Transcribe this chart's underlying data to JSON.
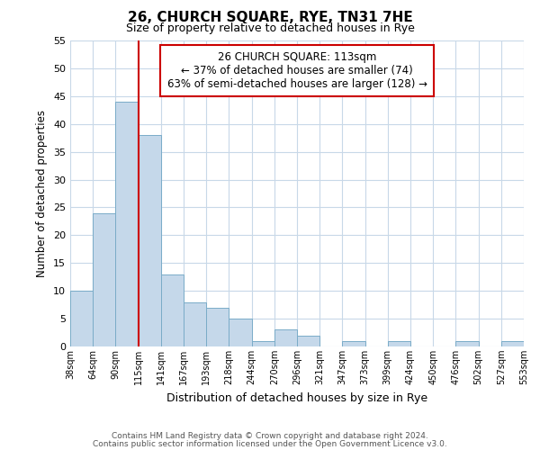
{
  "title": "26, CHURCH SQUARE, RYE, TN31 7HE",
  "subtitle": "Size of property relative to detached houses in Rye",
  "xlabel": "Distribution of detached houses by size in Rye",
  "ylabel": "Number of detached properties",
  "bin_labels": [
    "38sqm",
    "64sqm",
    "90sqm",
    "115sqm",
    "141sqm",
    "167sqm",
    "193sqm",
    "218sqm",
    "244sqm",
    "270sqm",
    "296sqm",
    "321sqm",
    "347sqm",
    "373sqm",
    "399sqm",
    "424sqm",
    "450sqm",
    "476sqm",
    "502sqm",
    "527sqm",
    "553sqm"
  ],
  "bar_values": [
    10,
    24,
    44,
    38,
    13,
    8,
    7,
    5,
    1,
    3,
    2,
    0,
    1,
    0,
    1,
    0,
    0,
    1,
    0,
    1
  ],
  "bar_color": "#c5d8ea",
  "bar_edge_color": "#7aacc8",
  "vline_color": "#cc0000",
  "vline_pos": 3.0,
  "ylim": [
    0,
    55
  ],
  "yticks": [
    0,
    5,
    10,
    15,
    20,
    25,
    30,
    35,
    40,
    45,
    50,
    55
  ],
  "annotation_box_text": "26 CHURCH SQUARE: 113sqm\n← 37% of detached houses are smaller (74)\n63% of semi-detached houses are larger (128) →",
  "footer_line1": "Contains HM Land Registry data © Crown copyright and database right 2024.",
  "footer_line2": "Contains public sector information licensed under the Open Government Licence v3.0.",
  "background_color": "#ffffff",
  "grid_color": "#c8d8e8"
}
